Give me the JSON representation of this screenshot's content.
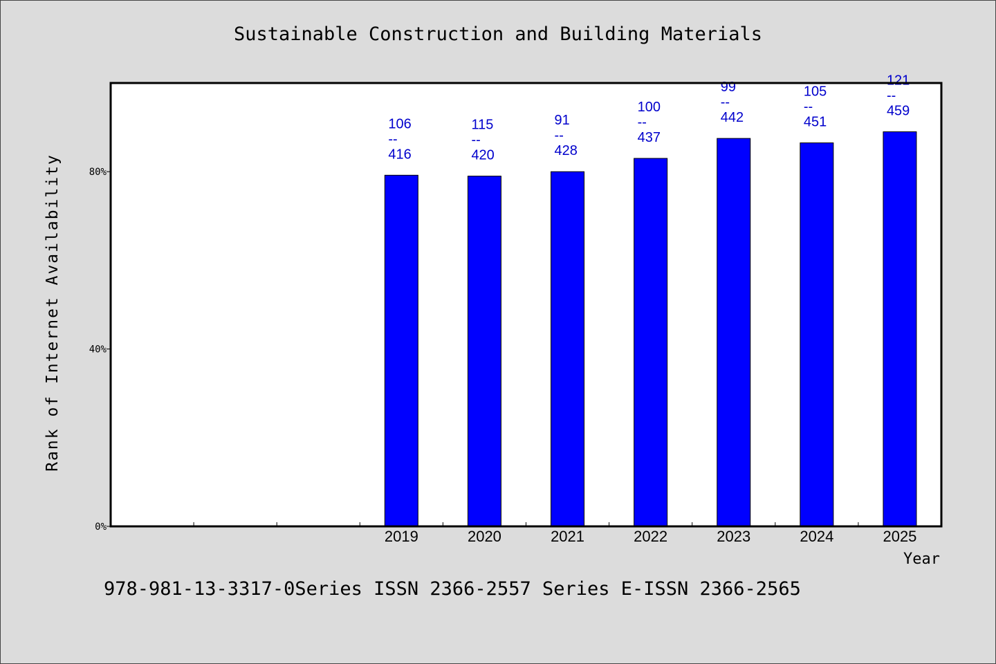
{
  "chart_data": {
    "type": "bar",
    "title": "Sustainable Construction and Building Materials",
    "xlabel": "Year",
    "ylabel": "Rank of Internet Availability",
    "categories": [
      "",
      "",
      "",
      "2019",
      "2020",
      "2021",
      "2022",
      "2023",
      "2024",
      "2025"
    ],
    "values": [
      null,
      null,
      null,
      79.2,
      79.0,
      80.0,
      83.0,
      87.5,
      86.5,
      89.0
    ],
    "bar_labels": [
      {
        "top": "",
        "bottom": ""
      },
      {
        "top": "",
        "bottom": ""
      },
      {
        "top": "",
        "bottom": ""
      },
      {
        "top": "106",
        "bottom": "416"
      },
      {
        "top": "115",
        "bottom": "420"
      },
      {
        "top": "91",
        "bottom": "428"
      },
      {
        "top": "100",
        "bottom": "437"
      },
      {
        "top": "99",
        "bottom": "442"
      },
      {
        "top": "105",
        "bottom": "451"
      },
      {
        "top": "121",
        "bottom": "459"
      }
    ],
    "label_separator": "--",
    "yticks": [
      {
        "value": 0,
        "label": "0%"
      },
      {
        "value": 40,
        "label": "40%"
      },
      {
        "value": 80,
        "label": "80%"
      }
    ],
    "ylim": [
      0,
      100
    ],
    "grid": false,
    "bar_color": "#0000ff",
    "label_color": "#0000cc",
    "plot_background": "#ffffff",
    "page_background": "#dcdcdc"
  },
  "footer": "978-981-13-3317-0Series ISSN 2366-2557 Series E-ISSN 2366-2565"
}
